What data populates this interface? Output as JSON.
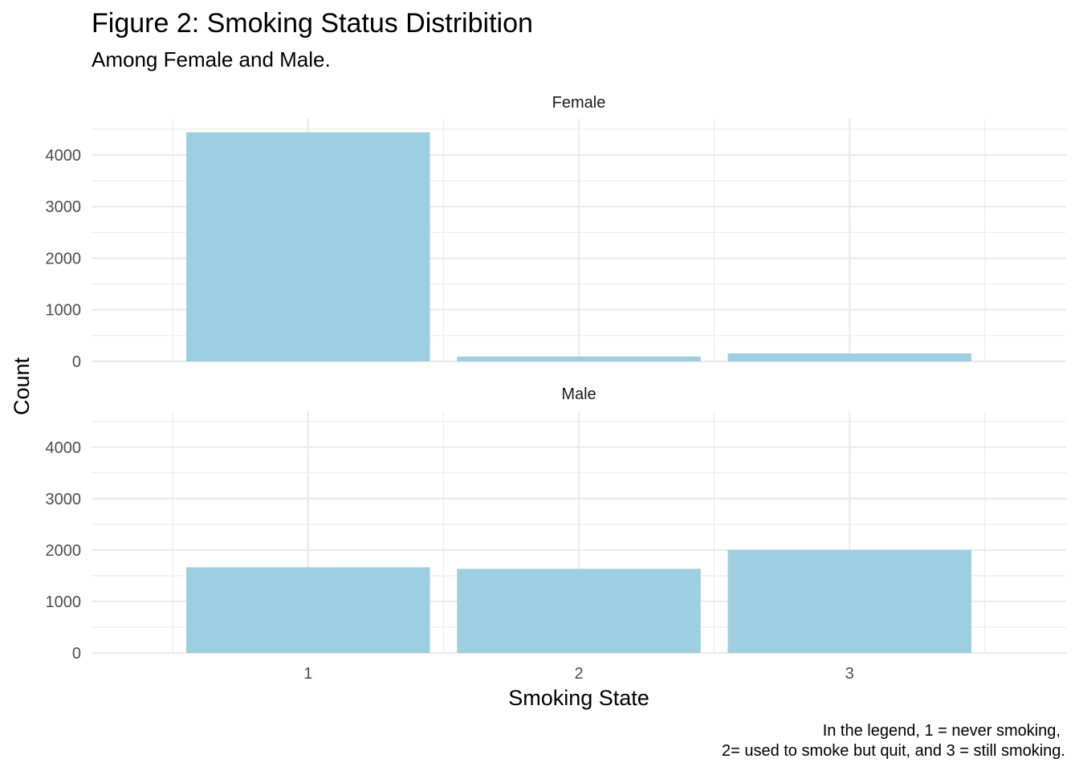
{
  "chart_data": {
    "type": "bar",
    "title": "Figure 2: Smoking Status Distribition",
    "subtitle": "Among Female and Male.",
    "xlabel": "Smoking State",
    "ylabel": "Count",
    "categories": [
      "1",
      "2",
      "3"
    ],
    "y_ticks": [
      "0",
      "1000",
      "2000",
      "3000",
      "4000"
    ],
    "ylim": [
      0,
      4700
    ],
    "grid": true,
    "bar_color": "#9ECFE0",
    "grid_color": "#EBEBEB",
    "facets": [
      {
        "label": "Female",
        "values": [
          4440,
          95,
          155
        ]
      },
      {
        "label": "Male",
        "values": [
          1665,
          1635,
          2005
        ]
      }
    ],
    "caption_lines": [
      "In the legend,  1 =  never smoking,",
      "2= used to smoke but quit, and 3 = still smoking."
    ]
  }
}
